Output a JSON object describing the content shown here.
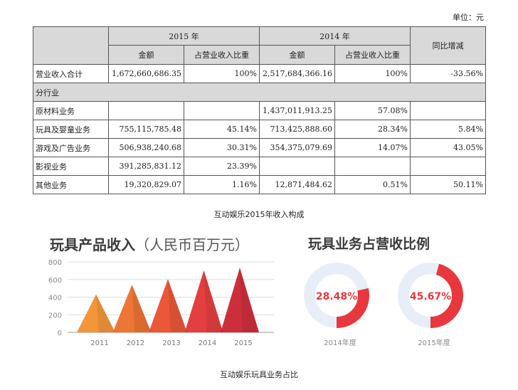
{
  "unit_label": "单位：元",
  "table": {
    "year_2015": "2015 年",
    "year_2014": "2014 年",
    "col_amount": "金额",
    "col_ratio": "占营业收入比重",
    "col_yoy": "同比增减",
    "rows": [
      {
        "label": "营业收入合计",
        "a2015": "1,672,660,686.35",
        "r2015": "100%",
        "a2014": "2,517,684,366.16",
        "r2014": "100%",
        "yoy": "-33.56%"
      },
      {
        "label": "原材料业务",
        "a2015": "",
        "r2015": "",
        "a2014": "1,437,011,913.25",
        "r2014": "57.08%",
        "yoy": ""
      },
      {
        "label": "玩具及婴童业务",
        "a2015": "755,115,785.48",
        "r2015": "45.14%",
        "a2014": "713,425,888.60",
        "r2014": "28.34%",
        "yoy": "5.84%"
      },
      {
        "label": "游戏及广告业务",
        "a2015": "506,938,240.68",
        "r2015": "30.31%",
        "a2014": "354,375,079.69",
        "r2014": "14.07%",
        "yoy": "43.05%"
      },
      {
        "label": "影视业务",
        "a2015": "391,285,831.12",
        "r2015": "23.39%",
        "a2014": "",
        "r2014": "",
        "yoy": ""
      },
      {
        "label": "其他业务",
        "a2015": "19,320,829.07",
        "r2015": "1.16%",
        "a2014": "12,871,484.62",
        "r2014": "0.51%",
        "yoy": "50.11%"
      }
    ],
    "section_label": "分行业"
  },
  "caption_top": "互动娱乐2015年收入构成",
  "caption_bottom": "互动娱乐玩具业务占比",
  "left_title_main": "玩具产品收入",
  "left_title_sub": "（人民币百万元）",
  "right_title": "玩具业务占营收比例",
  "colors": {
    "tri": [
      "#f28e2b",
      "#ec6a26",
      "#e84a2a",
      "#e23030",
      "#c81f2c"
    ],
    "donut_red": "#e8383d",
    "donut_track": "#e8eef7"
  },
  "chart_data": [
    {
      "type": "area",
      "title": "",
      "categories": [
        "2011",
        "2012",
        "2013",
        "2014",
        "2015"
      ],
      "values": [
        430,
        540,
        605,
        705,
        735
      ],
      "ylim": [
        0,
        800
      ],
      "yticks": [
        "0",
        "200",
        "400",
        "600",
        "800"
      ],
      "grid": true
    },
    {
      "type": "pie",
      "label": "2014年度",
      "value_text": "28.48%",
      "value": 28.48
    },
    {
      "type": "pie",
      "label": "2015年度",
      "value_text": "45.67%",
      "value": 45.67
    }
  ]
}
